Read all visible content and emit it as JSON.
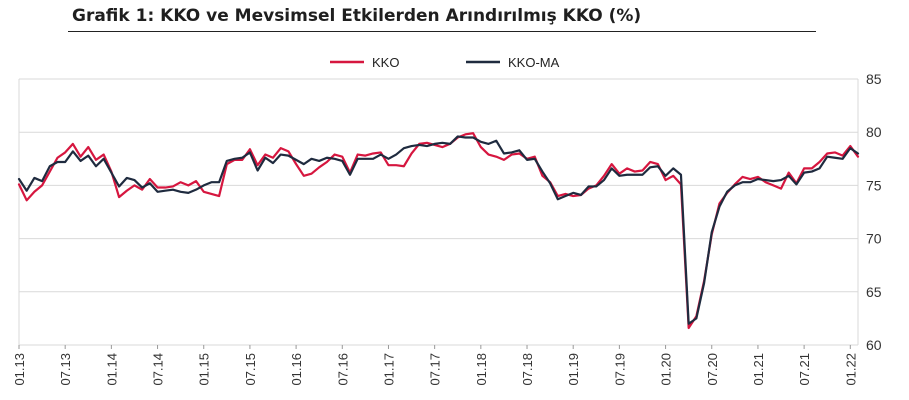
{
  "title": "Grafik 1: KKO ve Mevsimsel Etkilerden Arındırılmış KKO (%)",
  "colors": {
    "kko": "#d6163f",
    "kko_ma": "#1f2b3f",
    "grid": "#d9d9d9"
  },
  "chart_data": {
    "type": "line",
    "title": "Grafik 1: KKO ve Mevsimsel Etkilerden Arındırılmış KKO (%)",
    "xlabel": "",
    "ylabel": "",
    "ylim": [
      60,
      85
    ],
    "yticks": [
      60,
      65,
      70,
      75,
      80,
      85
    ],
    "xticks": [
      "01.13",
      "07.13",
      "01.14",
      "07.14",
      "01.15",
      "07.15",
      "01.16",
      "07.16",
      "01.17",
      "07.17",
      "01.18",
      "07.18",
      "01.19",
      "07.19",
      "01.20",
      "07.20",
      "01.21",
      "07.21",
      "01.22"
    ],
    "x_start": "01.13",
    "x_end": "01.22",
    "grid": true,
    "legend": "top-center",
    "series": [
      {
        "name": "KKO",
        "values": [
          75.1,
          73.6,
          74.4,
          75.0,
          76.3,
          77.6,
          78.1,
          78.9,
          77.7,
          78.6,
          77.4,
          77.9,
          76.3,
          73.9,
          74.5,
          75.0,
          74.6,
          75.6,
          74.8,
          74.8,
          74.9,
          75.3,
          75.0,
          75.4,
          74.4,
          74.2,
          74.0,
          77.0,
          77.4,
          77.4,
          78.4,
          76.9,
          77.9,
          77.6,
          78.5,
          78.2,
          77.0,
          75.9,
          76.1,
          76.7,
          77.2,
          77.9,
          77.7,
          76.2,
          77.9,
          77.8,
          78.0,
          78.1,
          76.9,
          76.9,
          76.8,
          78.0,
          78.9,
          79.0,
          78.8,
          78.6,
          78.9,
          79.5,
          79.8,
          79.9,
          78.6,
          77.9,
          77.7,
          77.4,
          77.9,
          78.0,
          77.5,
          77.7,
          75.9,
          75.3,
          74.0,
          74.2,
          74.0,
          74.1,
          74.7,
          75.0,
          75.9,
          77.0,
          76.1,
          76.6,
          76.3,
          76.4,
          77.2,
          77.0,
          75.5,
          75.9,
          75.1,
          61.6,
          62.7,
          66.0,
          70.4,
          73.3,
          74.3,
          75.1,
          75.8,
          75.6,
          75.8,
          75.3,
          75.0,
          74.7,
          76.2,
          75.2,
          76.6,
          76.6,
          77.2,
          78.0,
          78.1,
          77.8,
          78.7,
          77.7
        ],
        "color": "#d6163f"
      },
      {
        "name": "KKO-MA",
        "values": [
          75.6,
          74.5,
          75.7,
          75.4,
          76.8,
          77.2,
          77.2,
          78.2,
          77.3,
          77.8,
          76.8,
          77.5,
          76.2,
          74.9,
          75.7,
          75.5,
          74.8,
          75.2,
          74.4,
          74.5,
          74.6,
          74.4,
          74.3,
          74.6,
          75.0,
          75.3,
          75.3,
          77.3,
          77.5,
          77.6,
          78.1,
          76.4,
          77.6,
          77.1,
          77.9,
          77.8,
          77.4,
          77.0,
          77.5,
          77.3,
          77.6,
          77.5,
          77.3,
          76.0,
          77.5,
          77.5,
          77.5,
          77.9,
          77.5,
          77.9,
          78.5,
          78.7,
          78.8,
          78.7,
          78.9,
          79.0,
          78.9,
          79.6,
          79.5,
          79.5,
          79.1,
          78.9,
          79.2,
          78.0,
          78.1,
          78.3,
          77.4,
          77.5,
          76.3,
          75.2,
          73.7,
          74.0,
          74.3,
          74.1,
          74.9,
          74.9,
          75.5,
          76.6,
          75.9,
          76.0,
          76.0,
          76.0,
          76.7,
          76.8,
          75.9,
          76.6,
          76.0,
          62.0,
          62.5,
          65.8,
          70.6,
          73.0,
          74.4,
          75.0,
          75.3,
          75.3,
          75.6,
          75.5,
          75.4,
          75.5,
          75.9,
          75.1,
          76.2,
          76.3,
          76.6,
          77.7,
          77.6,
          77.5,
          78.5,
          78.0
        ],
        "color": "#1f2b3f"
      }
    ]
  }
}
